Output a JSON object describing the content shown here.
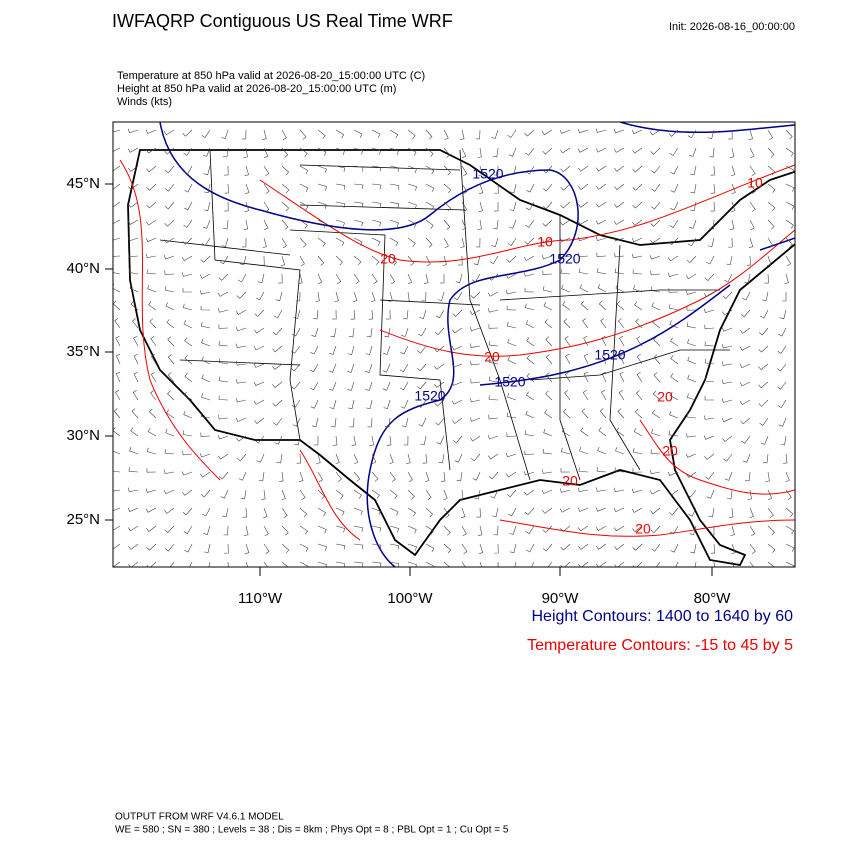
{
  "header": {
    "title": "IWFAQRP Contiguous US Real Time WRF",
    "init": "Init: 2026-08-16_00:00:00"
  },
  "fields": [
    "Temperature at 850 hPa valid at 2026-08-20_15:00:00 UTC   (C)",
    "Height at 850 hPa valid at 2026-08-20_15:00:00 UTC   (m)",
    "Winds   (kts)"
  ],
  "map": {
    "lat_labels": [
      "45°N",
      "40°N",
      "35°N",
      "30°N",
      "25°N"
    ],
    "lon_labels": [
      "110°W",
      "100°W",
      "90°W",
      "80°W"
    ],
    "height_labels": [
      "1520",
      "1520",
      "1520",
      "1520",
      "1520"
    ],
    "temperature_labels": [
      "20",
      "20",
      "20",
      "20",
      "20",
      "20",
      "10",
      "10"
    ]
  },
  "legend": {
    "height": "Height Contours: 1400 to 1640 by 60",
    "temperature": "Temperature Contours: -15 to 45 by 5"
  },
  "footer": [
    "OUTPUT FROM WRF V4.6.1 MODEL",
    "WE = 580 ; SN = 380 ; Levels = 38 ; Dis = 8km ; Phys Opt = 8 ; PBL Opt = 1 ; Cu Opt = 5"
  ]
}
